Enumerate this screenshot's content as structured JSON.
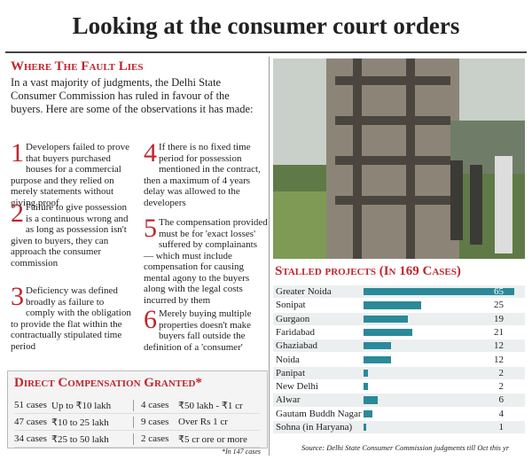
{
  "header": {
    "title": "Looking at the consumer court orders"
  },
  "fault": {
    "heading": "Where The Fault Lies",
    "intro": "In a vast majority of judgments, the Delhi State Consumer Commission has ruled in favour of the buyers. Here are some of the observations it has made:",
    "points": [
      {
        "num": "1",
        "text": "Developers failed to prove that buyers purchased houses for a commercial purpose and they relied on merely statements without giving proof"
      },
      {
        "num": "2",
        "text": "Failure to give possession is a continuous wrong and as long as possession isn't given to buyers, they can approach the consumer commission"
      },
      {
        "num": "3",
        "text": "Deficiency was defined broadly as failure to comply with the obligation to provide the flat within the contractually stipulated time period"
      },
      {
        "num": "4",
        "text": "If there is no fixed time period for possession mentioned in the contract, then a maximum of 4 years delay was allowed to the developers"
      },
      {
        "num": "5",
        "text": "The compensation provided must be for 'exact losses' suffered by complainants — which must include compensation for causing mental agony to the buyers along with the legal costs incurred by them"
      },
      {
        "num": "6",
        "text": "Merely buying multiple properties doesn't make buyers fall outside the definition of a 'consumer'"
      }
    ]
  },
  "compensation": {
    "heading": "Direct Compensation Granted*",
    "rows": [
      [
        {
          "cases": "51 cases",
          "range": "Up to ₹10 lakh"
        },
        {
          "cases": "4 cases",
          "range": "₹50 lakh - ₹1 cr"
        }
      ],
      [
        {
          "cases": "47 cases",
          "range": "₹10 to 25 lakh"
        },
        {
          "cases": "9 cases",
          "range": "Over Rs 1 cr"
        }
      ],
      [
        {
          "cases": "34 cases",
          "range": "₹25 to 50 lakh"
        },
        {
          "cases": "2 cases",
          "range": "₹5 cr ore or more"
        }
      ]
    ],
    "note": "*In 147 cases"
  },
  "stalled": {
    "heading": "Stalled projects (In 169 Cases)",
    "rows": [
      {
        "name": "Greater Noida",
        "value": 65
      },
      {
        "name": "Sonipat",
        "value": 25
      },
      {
        "name": "Gurgaon",
        "value": 19
      },
      {
        "name": "Faridabad",
        "value": 21
      },
      {
        "name": "Ghaziabad",
        "value": 12
      },
      {
        "name": "Noida",
        "value": 12
      },
      {
        "name": "Panipat",
        "value": 2
      },
      {
        "name": "New Delhi",
        "value": 2
      },
      {
        "name": "Alwar",
        "value": 6
      },
      {
        "name": "Gautam Buddh Nagar",
        "value": 4
      },
      {
        "name": "Sohna (in Haryana)",
        "value": 1
      }
    ],
    "source": "Source: Delhi State Consumer Commission judgments till Oct this yr"
  }
}
